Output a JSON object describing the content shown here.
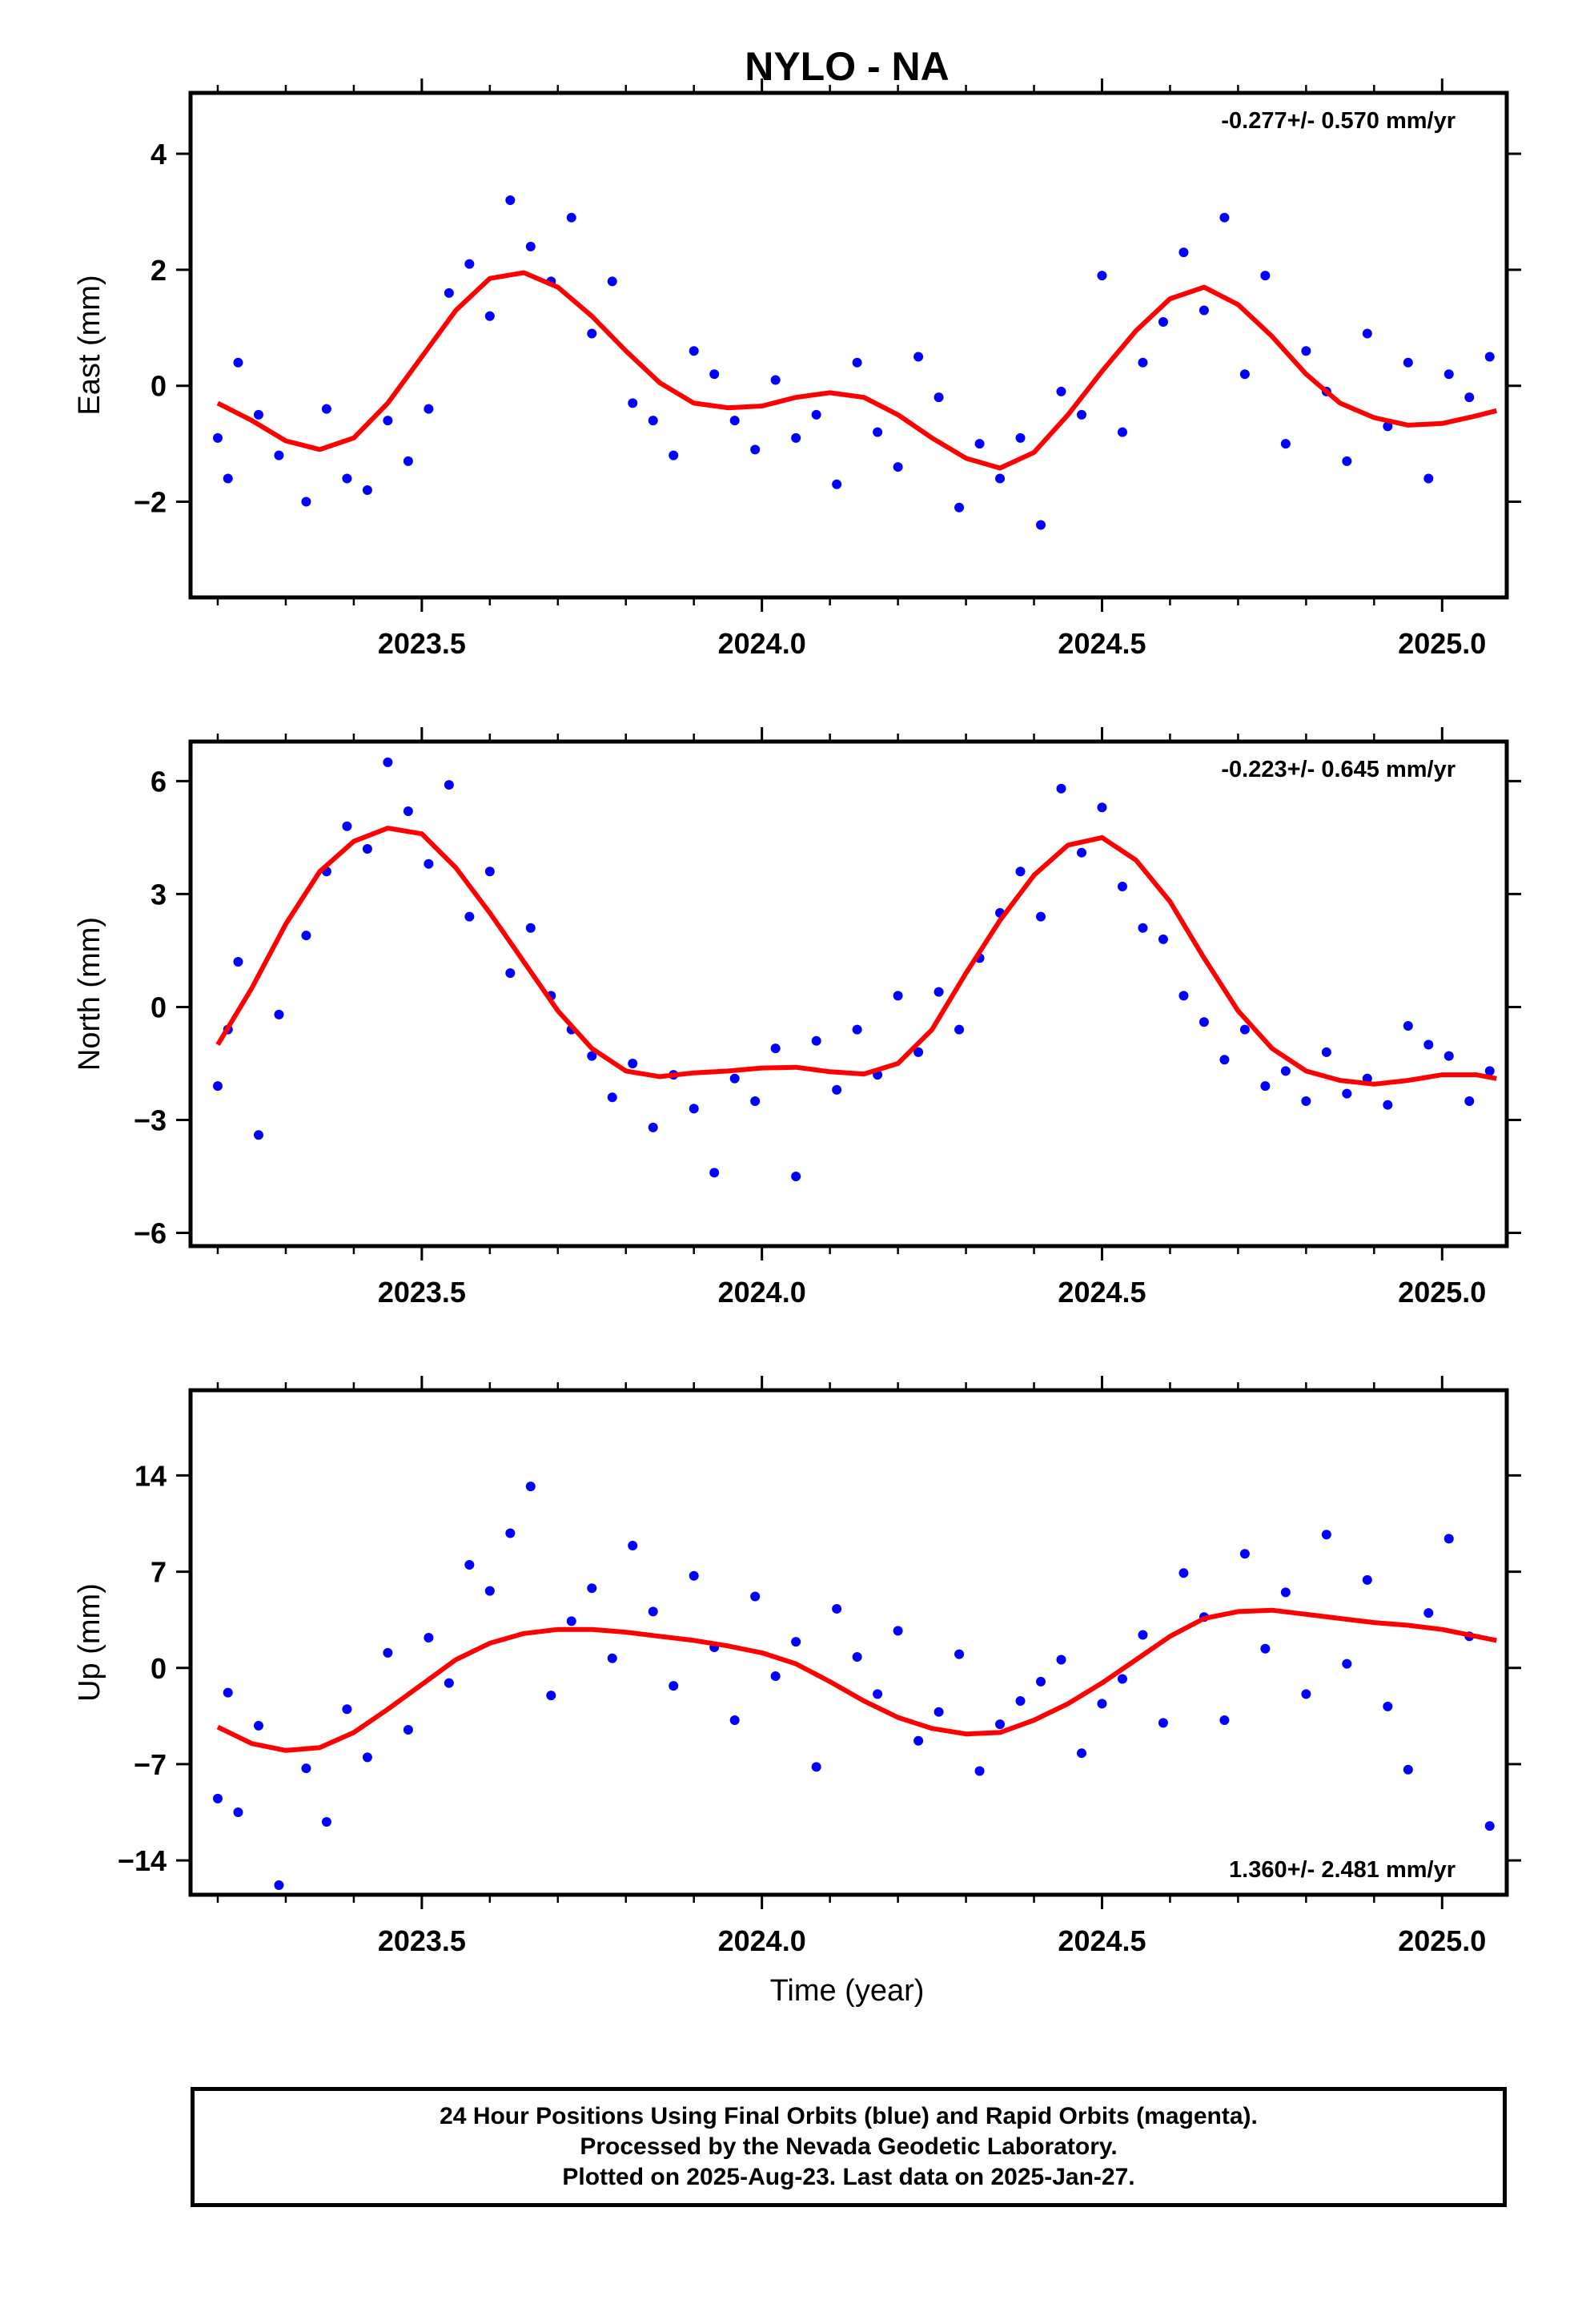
{
  "title": "NYLO - NA",
  "xlabel": "Time (year)",
  "colors": {
    "final_orbits": "#0000ff",
    "model_fit": "#ff0000",
    "rapid_orbits": "#ff00ff"
  },
  "footer": {
    "line1": "24 Hour Positions Using Final Orbits (blue) and Rapid Orbits (magenta).",
    "line2": "Processed by the Nevada Geodetic Laboratory.",
    "line3": "Plotted on 2025-Aug-23. Last data on 2025-Jan-27."
  },
  "chart_data": [
    {
      "type": "scatter",
      "panel": "east",
      "ylabel": "East (mm)",
      "rate_text": "-0.277+/- 0.570 mm/yr",
      "xlim": [
        2023.16,
        2025.095
      ],
      "ylim": [
        -3.65,
        5.05
      ],
      "yticks": [
        -2,
        0,
        2,
        4
      ],
      "xticks": [
        2023.5,
        2024.0,
        2024.5,
        2025.0
      ],
      "grid": false,
      "series": [
        {
          "marker": "dot",
          "x": [
            2023.2,
            2023.215,
            2023.23,
            2023.26,
            2023.29,
            2023.33,
            2023.36,
            2023.39,
            2023.42,
            2023.45,
            2023.48,
            2023.51,
            2023.54,
            2023.57,
            2023.6,
            2023.63,
            2023.66,
            2023.69,
            2023.72,
            2023.75,
            2023.78,
            2023.81,
            2023.84,
            2023.87,
            2023.9,
            2023.93,
            2023.96,
            2023.99,
            2024.02,
            2024.05,
            2024.08,
            2024.11,
            2024.14,
            2024.17,
            2024.2,
            2024.23,
            2024.26,
            2024.29,
            2024.32,
            2024.35,
            2024.38,
            2024.41,
            2024.44,
            2024.47,
            2024.5,
            2024.53,
            2024.56,
            2024.59,
            2024.62,
            2024.65,
            2024.68,
            2024.71,
            2024.74,
            2024.77,
            2024.8,
            2024.83,
            2024.86,
            2024.89,
            2024.92,
            2024.95,
            2024.98,
            2025.01,
            2025.04,
            2025.07
          ],
          "y": [
            -0.9,
            -1.6,
            0.4,
            -0.5,
            -1.2,
            -2.0,
            -0.4,
            -1.6,
            -1.8,
            -0.6,
            -1.3,
            -0.4,
            1.6,
            2.1,
            1.2,
            3.2,
            2.4,
            1.8,
            2.9,
            0.9,
            1.8,
            -0.3,
            -0.6,
            -1.2,
            0.6,
            0.2,
            -0.6,
            -1.1,
            0.1,
            -0.9,
            -0.5,
            -1.7,
            0.4,
            -0.8,
            -1.4,
            0.5,
            -0.2,
            -2.1,
            -1.0,
            -1.6,
            -0.9,
            -2.4,
            -0.1,
            -0.5,
            1.9,
            -0.8,
            0.4,
            1.1,
            2.3,
            1.3,
            2.9,
            0.2,
            1.9,
            -1.0,
            0.6,
            -0.1,
            -1.3,
            0.9,
            -0.7,
            0.4,
            -1.6,
            0.2,
            -0.2,
            0.5
          ]
        },
        {
          "name": "",
          "role": "model_fit",
          "x": [
            2023.2,
            2023.25,
            2023.3,
            2023.35,
            2023.4,
            2023.45,
            2023.5,
            2023.55,
            2023.6,
            2023.65,
            2023.7,
            2023.75,
            2023.8,
            2023.85,
            2023.9,
            2023.95,
            2024.0,
            2024.05,
            2024.1,
            2024.15,
            2024.2,
            2024.25,
            2024.3,
            2024.35,
            2024.4,
            2024.45,
            2024.5,
            2024.55,
            2024.6,
            2024.65,
            2024.7,
            2024.75,
            2024.8,
            2024.85,
            2024.9,
            2024.95,
            2025.0,
            2025.05,
            2025.08
          ],
          "y": [
            -0.3,
            -0.6,
            -0.95,
            -1.1,
            -0.9,
            -0.3,
            0.5,
            1.3,
            1.85,
            1.95,
            1.7,
            1.2,
            0.6,
            0.05,
            -0.3,
            -0.38,
            -0.35,
            -0.2,
            -0.12,
            -0.2,
            -0.5,
            -0.9,
            -1.25,
            -1.42,
            -1.15,
            -0.5,
            0.25,
            0.95,
            1.5,
            1.7,
            1.4,
            0.85,
            0.2,
            -0.3,
            -0.55,
            -0.68,
            -0.65,
            -0.52,
            -0.43
          ]
        }
      ]
    },
    {
      "type": "scatter",
      "panel": "north",
      "ylabel": "North (mm)",
      "rate_text": "-0.223+/- 0.645 mm/yr",
      "xlim": [
        2023.16,
        2025.095
      ],
      "ylim": [
        -6.35,
        7.05
      ],
      "yticks": [
        -6,
        -3,
        0,
        3,
        6
      ],
      "xticks": [
        2023.5,
        2024.0,
        2024.5,
        2025.0
      ],
      "grid": false,
      "series": [
        {
          "marker": "dot",
          "x": [
            2023.2,
            2023.215,
            2023.23,
            2023.26,
            2023.29,
            2023.33,
            2023.36,
            2023.39,
            2023.42,
            2023.45,
            2023.48,
            2023.51,
            2023.54,
            2023.57,
            2023.6,
            2023.63,
            2023.66,
            2023.69,
            2023.72,
            2023.75,
            2023.78,
            2023.81,
            2023.84,
            2023.87,
            2023.9,
            2023.93,
            2023.96,
            2023.99,
            2024.02,
            2024.05,
            2024.08,
            2024.11,
            2024.14,
            2024.17,
            2024.2,
            2024.23,
            2024.26,
            2024.29,
            2024.32,
            2024.35,
            2024.38,
            2024.41,
            2024.44,
            2024.47,
            2024.5,
            2024.53,
            2024.56,
            2024.59,
            2024.62,
            2024.65,
            2024.68,
            2024.71,
            2024.74,
            2024.77,
            2024.8,
            2024.83,
            2024.86,
            2024.89,
            2024.92,
            2024.95,
            2024.98,
            2025.01,
            2025.04,
            2025.07
          ],
          "y": [
            -2.1,
            -0.6,
            1.2,
            -3.4,
            -0.2,
            1.9,
            3.6,
            4.8,
            4.2,
            6.5,
            5.2,
            3.8,
            5.9,
            2.4,
            3.6,
            0.9,
            2.1,
            0.3,
            -0.6,
            -1.3,
            -2.4,
            -1.5,
            -3.2,
            -1.8,
            -2.7,
            -4.4,
            -1.9,
            -2.5,
            -1.1,
            -4.5,
            -0.9,
            -2.2,
            -0.6,
            -1.8,
            0.3,
            -1.2,
            0.4,
            -0.6,
            1.3,
            2.5,
            3.6,
            2.4,
            5.8,
            4.1,
            5.3,
            3.2,
            2.1,
            1.8,
            0.3,
            -0.4,
            -1.4,
            -0.6,
            -2.1,
            -1.7,
            -2.5,
            -1.2,
            -2.3,
            -1.9,
            -2.6,
            -0.5,
            -1.0,
            -1.3,
            -2.5,
            -1.7
          ]
        },
        {
          "name": "",
          "role": "model_fit",
          "x": [
            2023.2,
            2023.25,
            2023.3,
            2023.35,
            2023.4,
            2023.45,
            2023.5,
            2023.55,
            2023.6,
            2023.65,
            2023.7,
            2023.75,
            2023.8,
            2023.85,
            2023.9,
            2023.95,
            2024.0,
            2024.05,
            2024.1,
            2024.15,
            2024.2,
            2024.25,
            2024.3,
            2024.35,
            2024.4,
            2024.45,
            2024.5,
            2024.55,
            2024.6,
            2024.65,
            2024.7,
            2024.75,
            2024.8,
            2024.85,
            2024.9,
            2024.95,
            2025.0,
            2025.05,
            2025.08
          ],
          "y": [
            -1.0,
            0.5,
            2.2,
            3.6,
            4.4,
            4.75,
            4.6,
            3.7,
            2.5,
            1.2,
            -0.1,
            -1.1,
            -1.7,
            -1.85,
            -1.75,
            -1.7,
            -1.62,
            -1.6,
            -1.72,
            -1.78,
            -1.5,
            -0.6,
            0.9,
            2.3,
            3.5,
            4.3,
            4.5,
            3.9,
            2.8,
            1.3,
            -0.1,
            -1.1,
            -1.7,
            -1.95,
            -2.05,
            -1.95,
            -1.8,
            -1.8,
            -1.9
          ]
        }
      ]
    },
    {
      "type": "scatter",
      "panel": "up",
      "ylabel": "Up (mm)",
      "rate_text": "1.360+/- 2.481 mm/yr",
      "xlim": [
        2023.16,
        2025.095
      ],
      "ylim": [
        -16.5,
        20.2
      ],
      "yticks": [
        -14,
        -7,
        0,
        7,
        14
      ],
      "xticks": [
        2023.5,
        2024.0,
        2024.5,
        2025.0
      ],
      "grid": false,
      "series": [
        {
          "marker": "dot",
          "x": [
            2023.2,
            2023.215,
            2023.23,
            2023.26,
            2023.29,
            2023.33,
            2023.36,
            2023.39,
            2023.42,
            2023.45,
            2023.48,
            2023.51,
            2023.54,
            2023.57,
            2023.6,
            2023.63,
            2023.66,
            2023.69,
            2023.72,
            2023.75,
            2023.78,
            2023.81,
            2023.84,
            2023.87,
            2023.9,
            2023.93,
            2023.96,
            2023.99,
            2024.02,
            2024.05,
            2024.08,
            2024.11,
            2024.14,
            2024.17,
            2024.2,
            2024.23,
            2024.26,
            2024.29,
            2024.32,
            2024.35,
            2024.38,
            2024.41,
            2024.44,
            2024.47,
            2024.5,
            2024.53,
            2024.56,
            2024.59,
            2024.62,
            2024.65,
            2024.68,
            2024.71,
            2024.74,
            2024.77,
            2024.8,
            2024.83,
            2024.86,
            2024.89,
            2024.92,
            2024.95,
            2024.98,
            2025.01,
            2025.04,
            2025.07
          ],
          "y": [
            -9.5,
            -1.8,
            -10.5,
            -4.2,
            -15.8,
            -7.3,
            -11.2,
            -3.0,
            -6.5,
            1.1,
            -4.5,
            2.2,
            -1.1,
            7.5,
            5.6,
            9.8,
            13.2,
            -2.0,
            3.4,
            5.8,
            0.7,
            8.9,
            4.1,
            -1.3,
            6.7,
            1.5,
            -3.8,
            5.2,
            -0.6,
            1.9,
            -7.2,
            4.3,
            0.8,
            -1.9,
            2.7,
            -5.3,
            -3.2,
            1.0,
            -7.5,
            -4.1,
            -2.4,
            -1.0,
            0.6,
            -6.2,
            -2.6,
            -0.8,
            2.4,
            -4.0,
            6.9,
            3.7,
            -3.8,
            8.3,
            1.4,
            5.5,
            -1.9,
            9.7,
            0.3,
            6.4,
            -2.8,
            -7.4,
            4.0,
            9.4,
            2.3,
            -11.5
          ]
        },
        {
          "name": "",
          "role": "model_fit",
          "x": [
            2023.2,
            2023.25,
            2023.3,
            2023.35,
            2023.4,
            2023.45,
            2023.5,
            2023.55,
            2023.6,
            2023.65,
            2023.7,
            2023.75,
            2023.8,
            2023.85,
            2023.9,
            2023.95,
            2024.0,
            2024.05,
            2024.1,
            2024.15,
            2024.2,
            2024.25,
            2024.3,
            2024.35,
            2024.4,
            2024.45,
            2024.5,
            2024.55,
            2024.6,
            2024.65,
            2024.7,
            2024.75,
            2024.8,
            2024.85,
            2024.9,
            2024.95,
            2025.0,
            2025.05,
            2025.08
          ],
          "y": [
            -4.3,
            -5.5,
            -6.0,
            -5.8,
            -4.7,
            -3.0,
            -1.2,
            0.6,
            1.8,
            2.5,
            2.8,
            2.8,
            2.6,
            2.3,
            2.0,
            1.6,
            1.1,
            0.3,
            -1.0,
            -2.4,
            -3.6,
            -4.4,
            -4.8,
            -4.7,
            -3.8,
            -2.6,
            -1.1,
            0.6,
            2.3,
            3.6,
            4.1,
            4.2,
            3.9,
            3.6,
            3.3,
            3.1,
            2.8,
            2.3,
            2.0
          ]
        }
      ]
    }
  ]
}
